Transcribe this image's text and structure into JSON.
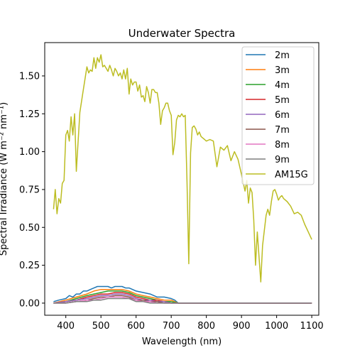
{
  "chart_data": {
    "type": "line",
    "title": "Underwater Spectra",
    "xlabel": "Wavelength (nm)",
    "ylabel": "Spectral Irradiance (W m⁻² nm⁻¹)",
    "xlim": [
      340,
      1120
    ],
    "ylim": [
      -0.08,
      1.72
    ],
    "xticks": [
      400,
      500,
      600,
      700,
      800,
      900,
      1000,
      1100
    ],
    "yticks": [
      0.0,
      0.25,
      0.5,
      0.75,
      1.0,
      1.25,
      1.5
    ],
    "ytick_labels": [
      "0.00",
      "0.25",
      "0.50",
      "0.75",
      "1.00",
      "1.25",
      "1.50"
    ],
    "grid": false,
    "legend_position": "upper right",
    "series": [
      {
        "name": "2m",
        "color": "#1f77b4",
        "x": [
          365,
          380,
          400,
          410,
          420,
          430,
          440,
          450,
          460,
          470,
          480,
          490,
          500,
          510,
          520,
          530,
          540,
          550,
          560,
          570,
          580,
          590,
          600,
          620,
          640,
          660,
          680,
          700,
          710,
          720,
          1100
        ],
        "y": [
          0.01,
          0.02,
          0.03,
          0.05,
          0.04,
          0.06,
          0.06,
          0.08,
          0.08,
          0.09,
          0.1,
          0.11,
          0.11,
          0.11,
          0.11,
          0.1,
          0.11,
          0.11,
          0.11,
          0.1,
          0.1,
          0.09,
          0.08,
          0.07,
          0.06,
          0.04,
          0.04,
          0.03,
          0.02,
          0.0,
          0.0
        ]
      },
      {
        "name": "3m",
        "color": "#ff7f0e",
        "x": [
          365,
          400,
          430,
          460,
          480,
          500,
          520,
          540,
          560,
          580,
          600,
          620,
          640,
          660,
          680,
          700,
          710,
          720,
          1100
        ],
        "y": [
          0.0,
          0.02,
          0.04,
          0.06,
          0.08,
          0.09,
          0.09,
          0.09,
          0.09,
          0.08,
          0.06,
          0.05,
          0.04,
          0.03,
          0.02,
          0.02,
          0.01,
          0.0,
          0.0
        ]
      },
      {
        "name": "4m",
        "color": "#2ca02c",
        "x": [
          365,
          400,
          430,
          460,
          480,
          500,
          520,
          540,
          560,
          580,
          600,
          620,
          640,
          660,
          680,
          700,
          720,
          1100
        ],
        "y": [
          0.0,
          0.01,
          0.03,
          0.05,
          0.06,
          0.07,
          0.08,
          0.08,
          0.08,
          0.07,
          0.05,
          0.04,
          0.03,
          0.02,
          0.01,
          0.01,
          0.0,
          0.0
        ]
      },
      {
        "name": "5m",
        "color": "#d62728",
        "x": [
          365,
          400,
          430,
          460,
          480,
          500,
          520,
          540,
          560,
          580,
          600,
          620,
          640,
          660,
          680,
          700,
          720,
          1100
        ],
        "y": [
          0.0,
          0.01,
          0.02,
          0.04,
          0.05,
          0.06,
          0.06,
          0.07,
          0.07,
          0.06,
          0.04,
          0.03,
          0.02,
          0.02,
          0.01,
          0.0,
          0.0,
          0.0
        ]
      },
      {
        "name": "6m",
        "color": "#9467bd",
        "x": [
          365,
          400,
          430,
          460,
          480,
          500,
          520,
          540,
          560,
          580,
          600,
          620,
          640,
          660,
          680,
          700,
          720,
          1100
        ],
        "y": [
          0.0,
          0.01,
          0.02,
          0.03,
          0.04,
          0.05,
          0.05,
          0.06,
          0.06,
          0.05,
          0.03,
          0.02,
          0.02,
          0.01,
          0.01,
          0.0,
          0.0,
          0.0
        ]
      },
      {
        "name": "7m",
        "color": "#8c564b",
        "x": [
          365,
          400,
          430,
          460,
          480,
          500,
          520,
          540,
          560,
          580,
          600,
          620,
          640,
          660,
          680,
          700,
          720,
          1100
        ],
        "y": [
          0.0,
          0.0,
          0.01,
          0.02,
          0.03,
          0.04,
          0.04,
          0.05,
          0.05,
          0.04,
          0.02,
          0.02,
          0.01,
          0.01,
          0.0,
          0.0,
          0.0,
          0.0
        ]
      },
      {
        "name": "8m",
        "color": "#e377c2",
        "x": [
          365,
          400,
          430,
          460,
          480,
          500,
          520,
          540,
          560,
          580,
          600,
          620,
          640,
          660,
          680,
          700,
          720,
          1100
        ],
        "y": [
          0.0,
          0.0,
          0.01,
          0.02,
          0.02,
          0.03,
          0.04,
          0.04,
          0.04,
          0.03,
          0.02,
          0.01,
          0.01,
          0.0,
          0.0,
          0.0,
          0.0,
          0.0
        ]
      },
      {
        "name": "9m",
        "color": "#7f7f7f",
        "x": [
          365,
          400,
          430,
          460,
          480,
          500,
          520,
          540,
          560,
          580,
          600,
          620,
          640,
          660,
          680,
          700,
          720,
          1100
        ],
        "y": [
          0.0,
          0.0,
          0.01,
          0.01,
          0.02,
          0.02,
          0.03,
          0.03,
          0.03,
          0.03,
          0.01,
          0.01,
          0.0,
          0.0,
          0.0,
          0.0,
          0.0,
          0.0
        ]
      },
      {
        "name": "AM15G",
        "color": "#bcbd22",
        "x": [
          365,
          370,
          375,
          380,
          385,
          390,
          395,
          400,
          405,
          410,
          415,
          420,
          425,
          430,
          440,
          450,
          460,
          465,
          470,
          475,
          480,
          485,
          490,
          495,
          500,
          505,
          510,
          515,
          520,
          525,
          530,
          535,
          540,
          545,
          550,
          555,
          560,
          565,
          570,
          575,
          580,
          585,
          590,
          595,
          600,
          605,
          610,
          615,
          620,
          625,
          630,
          635,
          640,
          645,
          650,
          655,
          660,
          665,
          670,
          675,
          680,
          685,
          690,
          695,
          700,
          705,
          710,
          715,
          720,
          725,
          730,
          735,
          740,
          745,
          750,
          755,
          760,
          765,
          770,
          775,
          780,
          785,
          790,
          795,
          800,
          810,
          820,
          830,
          840,
          850,
          860,
          870,
          880,
          890,
          900,
          910,
          915,
          920,
          925,
          930,
          935,
          940,
          945,
          950,
          955,
          960,
          965,
          970,
          975,
          980,
          985,
          990,
          995,
          1000,
          1005,
          1010,
          1015,
          1020,
          1030,
          1040,
          1050,
          1060,
          1070,
          1080,
          1090,
          1100
        ],
        "y": [
          0.62,
          0.75,
          0.59,
          0.69,
          0.66,
          0.79,
          0.81,
          1.11,
          1.14,
          1.07,
          1.23,
          1.11,
          1.25,
          0.87,
          1.26,
          1.41,
          1.56,
          1.52,
          1.54,
          1.53,
          1.62,
          1.55,
          1.62,
          1.59,
          1.64,
          1.56,
          1.57,
          1.55,
          1.53,
          1.57,
          1.54,
          1.5,
          1.55,
          1.53,
          1.5,
          1.52,
          1.48,
          1.54,
          1.48,
          1.55,
          1.38,
          1.48,
          1.44,
          1.46,
          1.46,
          1.4,
          1.44,
          1.36,
          1.37,
          1.33,
          1.43,
          1.39,
          1.32,
          1.41,
          1.41,
          1.39,
          1.39,
          1.32,
          1.18,
          1.27,
          1.29,
          1.32,
          1.32,
          1.27,
          1.24,
          0.98,
          1.06,
          1.21,
          1.24,
          1.23,
          1.25,
          1.23,
          1.24,
          0.8,
          0.26,
          0.99,
          1.16,
          1.17,
          1.15,
          1.11,
          1.13,
          1.1,
          1.09,
          1.08,
          1.07,
          1.08,
          1.07,
          0.9,
          1.03,
          1.01,
          1.04,
          0.94,
          1.0,
          0.95,
          0.85,
          0.74,
          0.81,
          0.66,
          0.76,
          0.73,
          0.55,
          0.25,
          0.47,
          0.3,
          0.14,
          0.38,
          0.48,
          0.58,
          0.62,
          0.58,
          0.67,
          0.74,
          0.75,
          0.72,
          0.68,
          0.7,
          0.71,
          0.69,
          0.67,
          0.64,
          0.59,
          0.6,
          0.58,
          0.52,
          0.47,
          0.42
        ]
      }
    ]
  }
}
